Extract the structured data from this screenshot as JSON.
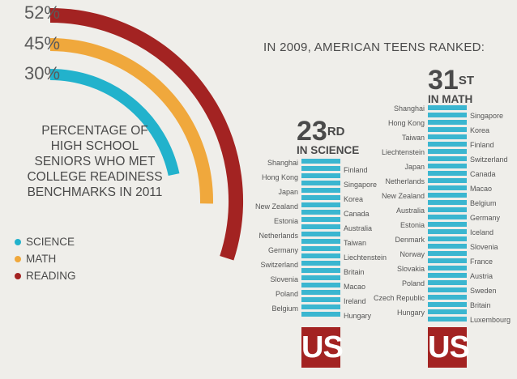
{
  "chart_data": [
    {
      "type": "radial-bar",
      "title": "Percentage of high school seniors who met college readiness benchmarks in 2011",
      "title_lines": [
        "PERCENTAGE OF",
        "HIGH SCHOOL",
        "SENIORS WHO MET",
        "COLLEGE READINESS",
        "BENCHMARKS IN 2011"
      ],
      "series": [
        {
          "name": "SCIENCE",
          "value": 30,
          "label": "30%",
          "color": "#22b2cc"
        },
        {
          "name": "MATH",
          "value": 45,
          "label": "45%",
          "color": "#f0a83c"
        },
        {
          "name": "READING",
          "value": 52,
          "label": "52%",
          "color": "#a32322"
        }
      ]
    },
    {
      "type": "ranking",
      "subject": "science",
      "rank": "23",
      "rank_suffix": "RD",
      "subtitle": "IN SCIENCE",
      "total_ranked": 23,
      "above_left": [
        "Shanghai",
        "Hong Kong",
        "Japan",
        "New Zealand",
        "Estonia",
        "Netherlands",
        "Germany",
        "Switzerland",
        "Slovenia",
        "Poland",
        "Belgium"
      ],
      "above_right": [
        "Finland",
        "Singapore",
        "Korea",
        "Canada",
        "Australia",
        "Taiwan",
        "Liechtenstein",
        "Britain",
        "Macao",
        "Ireland",
        "Hungary"
      ],
      "us_label": "US"
    },
    {
      "type": "ranking",
      "subject": "math",
      "rank": "31",
      "rank_suffix": "ST",
      "subtitle": "IN MATH",
      "total_ranked": 31,
      "above_left": [
        "Shanghai",
        "Hong Kong",
        "Taiwan",
        "Liechtenstein",
        "Japan",
        "Netherlands",
        "New Zealand",
        "Australia",
        "Estonia",
        "Denmark",
        "Norway",
        "Slovakia",
        "Poland",
        "Czech Republic",
        "Hungary"
      ],
      "above_right": [
        "Singapore",
        "Korea",
        "Finland",
        "Switzerland",
        "Canada",
        "Macao",
        "Belgium",
        "Germany",
        "Iceland",
        "Slovenia",
        "France",
        "Austria",
        "Sweden",
        "Britain",
        "Luxembourg"
      ],
      "us_label": "US"
    }
  ],
  "headline": "IN 2009, AMERICAN TEENS RANKED:",
  "colors": {
    "science": "#22b2cc",
    "math": "#f0a83c",
    "reading": "#a32322",
    "bar": "#3bb6d0",
    "us_box": "#a32322"
  }
}
